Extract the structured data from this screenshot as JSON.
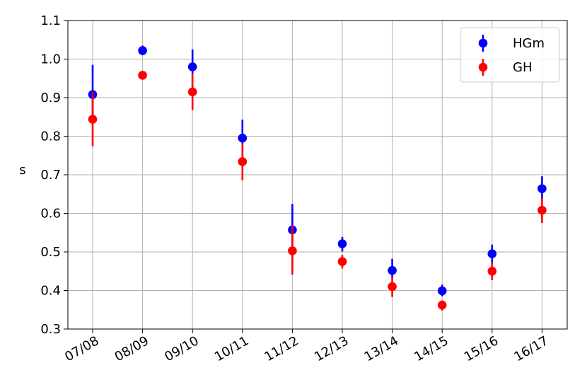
{
  "chart_data": {
    "type": "scatter",
    "title": "",
    "xlabel": "",
    "ylabel": "s",
    "categories": [
      "07/08",
      "08/09",
      "09/10",
      "10/11",
      "11/12",
      "12/13",
      "13/14",
      "14/15",
      "15/16",
      "16/17"
    ],
    "ylim": [
      0.3,
      1.1
    ],
    "yticks": [
      "0.3",
      "0.4",
      "0.5",
      "0.6",
      "0.7",
      "0.8",
      "0.9",
      "1.0",
      "1.1"
    ],
    "grid": true,
    "legend_position": "top-right",
    "series": [
      {
        "name": "HGm",
        "color": "#0000ff",
        "values": [
          0.908,
          1.022,
          0.98,
          0.795,
          0.557,
          0.521,
          0.452,
          0.399,
          0.495,
          0.664
        ],
        "err_low": [
          0.07,
          0.012,
          0.05,
          0.048,
          0.07,
          0.02,
          0.02,
          0.014,
          0.023,
          0.03
        ],
        "err_high": [
          0.077,
          0.013,
          0.045,
          0.048,
          0.067,
          0.018,
          0.03,
          0.016,
          0.024,
          0.032
        ]
      },
      {
        "name": "GH",
        "color": "#ff0000",
        "values": [
          0.844,
          0.958,
          0.915,
          0.734,
          0.503,
          0.475,
          0.41,
          0.362,
          0.45,
          0.608
        ],
        "err_low": [
          0.07,
          0.01,
          0.047,
          0.048,
          0.062,
          0.018,
          0.027,
          0.014,
          0.023,
          0.033
        ],
        "err_high": [
          0.07,
          0.01,
          0.048,
          0.047,
          0.065,
          0.017,
          0.025,
          0.012,
          0.022,
          0.032
        ]
      }
    ]
  }
}
